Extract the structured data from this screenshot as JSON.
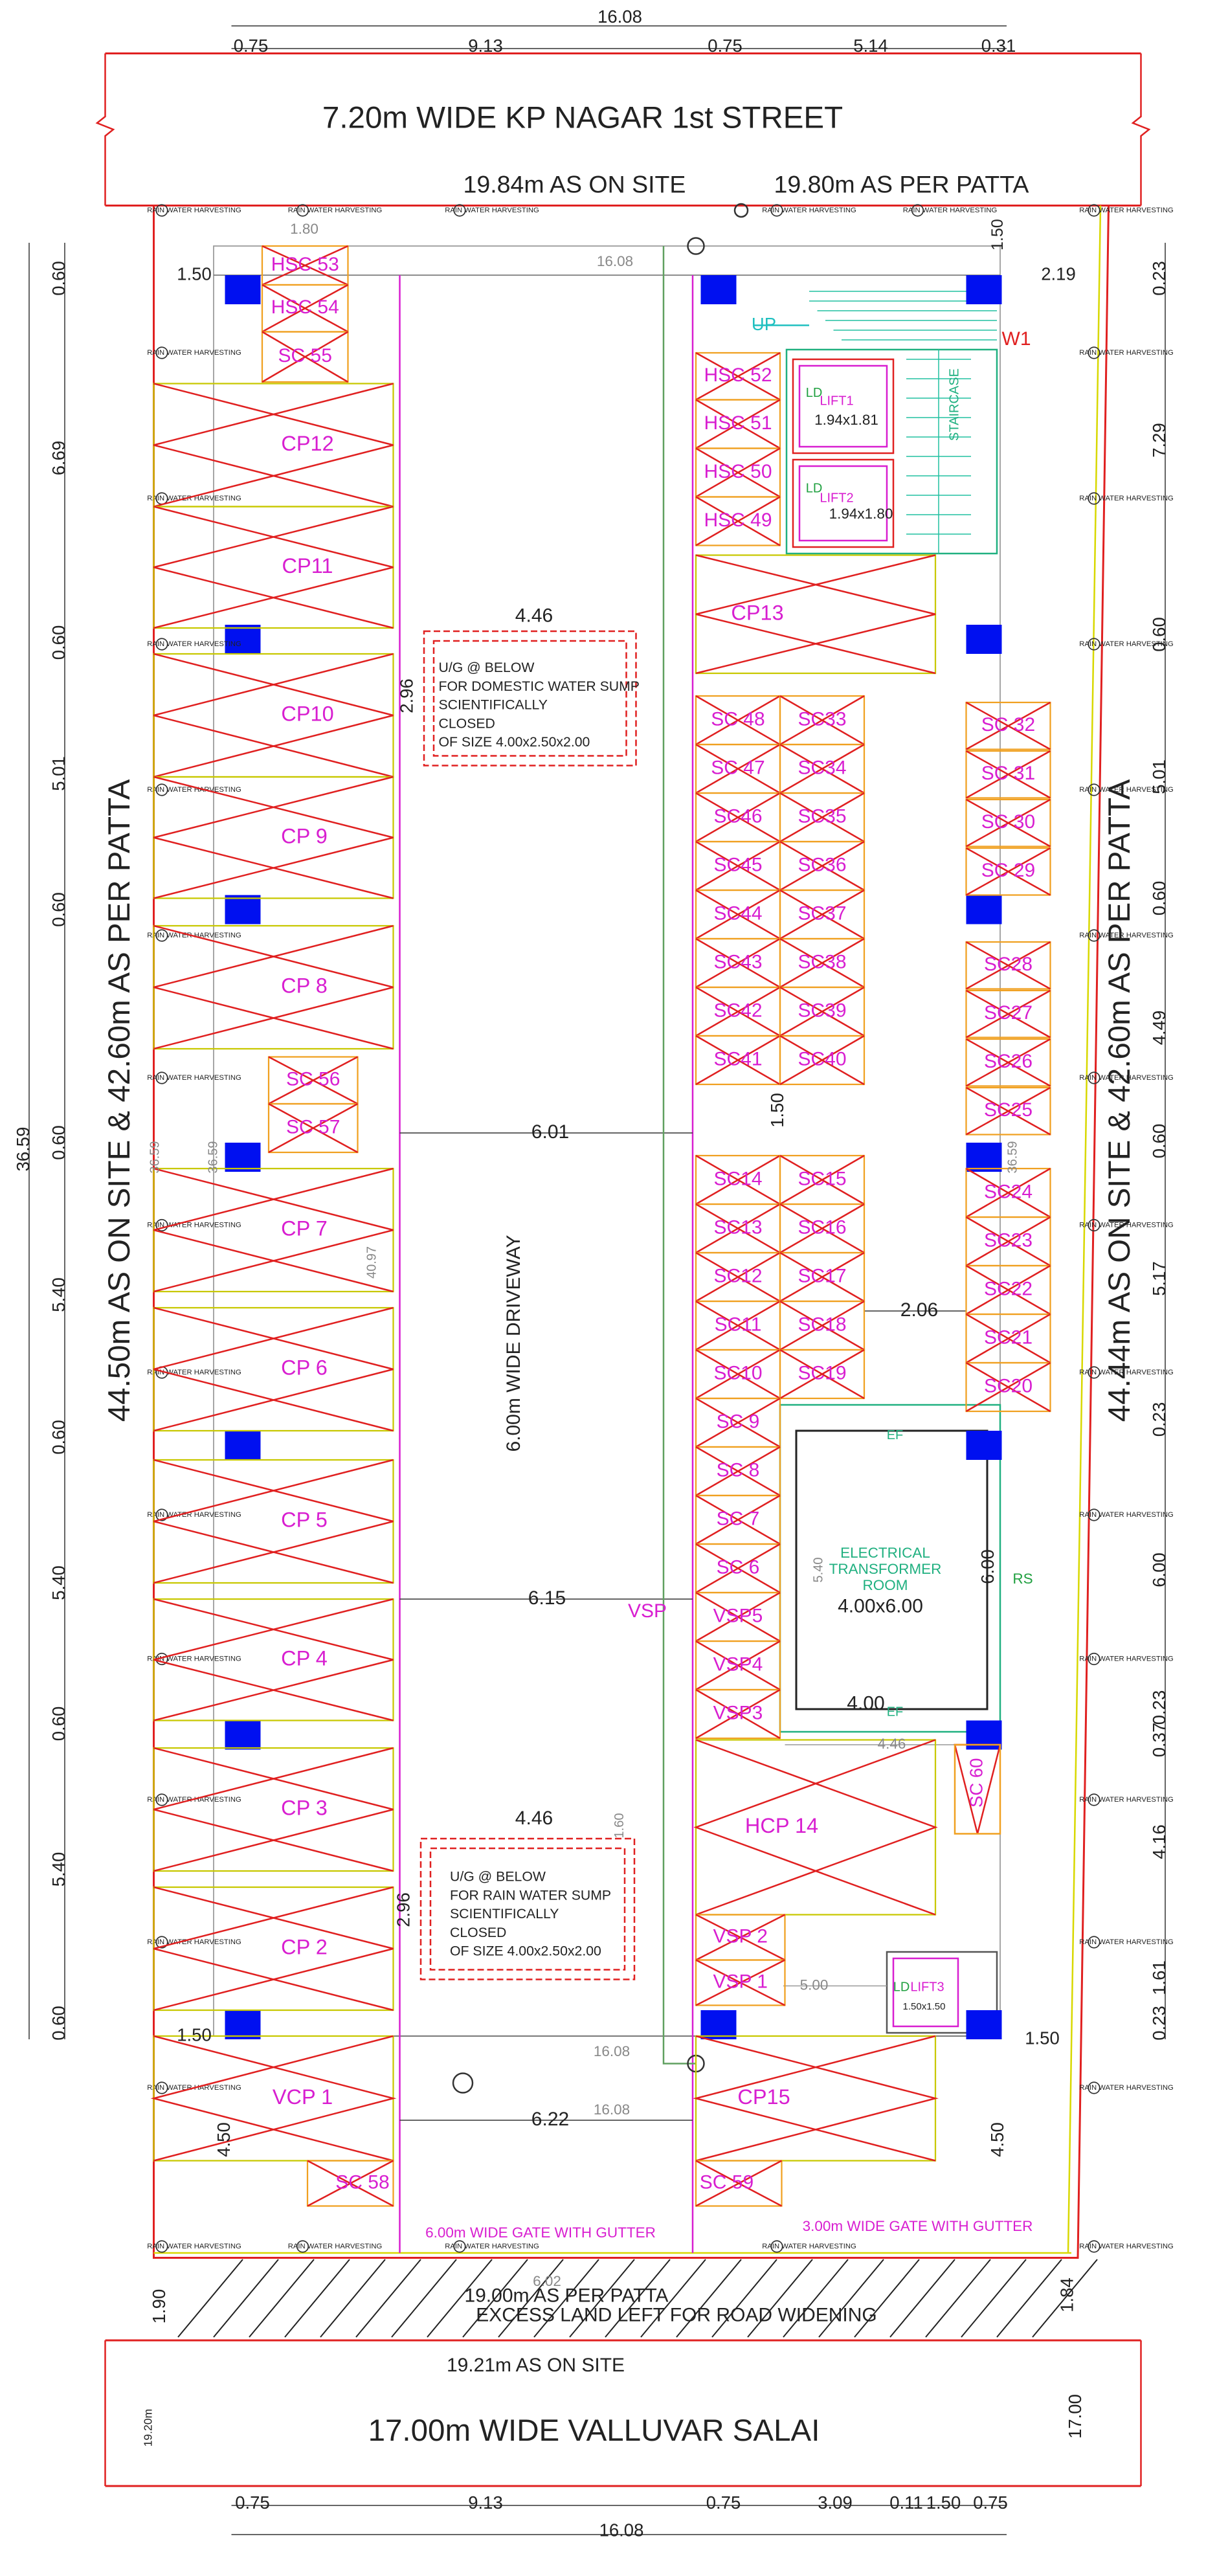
{
  "road_top": "7.20m WIDE KP NAGAR 1st STREET",
  "road_bottom": "17.00m WIDE VALLUVAR SALAI",
  "site_labels": [
    "19.84m AS ON SITE",
    "19.80m AS PER PATTA",
    "44.50m AS ON SITE & 42.60m AS PER PATTA",
    "44.44m AS ON SITE & 42.60m AS PER PATTA",
    "19.00m AS PER PATTA",
    "EXCESS LAND LEFT FOR ROAD WIDENING",
    "19.21m AS ON SITE"
  ],
  "dims_top": [
    "16.08",
    "0.75",
    "9.13",
    "0.75",
    "5.14",
    "0.31"
  ],
  "dims_bottom": [
    "0.75",
    "9.13",
    "0.75",
    "3.09",
    "0.11",
    "1.50",
    "0.75",
    "16.08"
  ],
  "dims_left": [
    "0.60",
    "6.69",
    "0.60",
    "5.01",
    "0.60",
    "0.60",
    "5.40",
    "0.60",
    "5.40",
    "0.60",
    "5.40",
    "0.60",
    "36.59",
    "19.20m",
    "1.90"
  ],
  "dims_right": [
    "0.23",
    "7.29",
    "0.60",
    "5.01",
    "0.60",
    "4.49",
    "0.60",
    "5.17",
    "0.23",
    "6.00",
    "0.23",
    "0.37",
    "4.16",
    "1.61",
    "0.23",
    "17.00",
    "1.84"
  ],
  "dims_inner": [
    "1.50",
    "16.08",
    "2.19",
    "1.80",
    "1.50",
    "4.46",
    "2.96",
    "6.01",
    "1.50",
    "36.59",
    "36.59",
    "36.59",
    "40.97",
    "2.06",
    "6.15",
    "6.00",
    "5.40",
    "4.00",
    "4.46",
    "4.46",
    "1.60",
    "2.96",
    "5.00",
    "1.50",
    "1.50",
    "16.08",
    "6.22",
    "16.08",
    "4.50",
    "4.50",
    "6.02"
  ],
  "parking": [
    "HSC 53",
    "HSC 54",
    "SC 55",
    "CP12",
    "CP11",
    "CP10",
    "CP 9",
    "CP 8",
    "SC 56",
    "SC 57",
    "CP 7",
    "CP 6",
    "CP 5",
    "CP 4",
    "CP 3",
    "CP 2",
    "VCP 1",
    "SC 58",
    "HSC 52",
    "HSC 51",
    "HSC 50",
    "HSC 49",
    "CP13",
    "SC 48",
    "SC33",
    "SC 47",
    "SC34",
    "SC46",
    "SC35",
    "SC45",
    "SC36",
    "SC44",
    "SC37",
    "SC43",
    "SC38",
    "SC42",
    "SC39",
    "SC41",
    "SC40",
    "SC 32",
    "SC 31",
    "SC 30",
    "SC 29",
    "SC28",
    "SC27",
    "SC26",
    "SC25",
    "SC14",
    "SC15",
    "SC13",
    "SC16",
    "SC12",
    "SC17",
    "SC11",
    "SC18",
    "SC10",
    "SC19",
    "SC24",
    "SC23",
    "SC22",
    "SC21",
    "SC20",
    "SC 9",
    "SC  8",
    "SC  7",
    "SC  6",
    "VSP5",
    "VSP4",
    "VSP3",
    "HCP 14",
    "SC 60",
    "VSP 2",
    "VSP 1",
    "CP15",
    "SC 59"
  ],
  "labels": [
    "6.00m WIDE DRIVEWAY",
    "VSP",
    "UP",
    "W1",
    "LIFT1",
    "1.94x1.81",
    "LIFT2",
    "1.94x1.80",
    "LD",
    "LD",
    "STAIRCASE",
    "ELECTRICAL",
    "TRANSFORMER",
    "ROOM",
    "4.00x6.00",
    "EF",
    "EF",
    "RS",
    "LIFT3",
    "LD",
    "1.50x1.50",
    "6.00m WIDE GATE WITH GUTTER",
    "3.00m WIDE GATE WITH GUTTER"
  ],
  "sumps": [
    {
      "lines": [
        "U/G @ BELOW",
        "FOR DOMESTIC  WATER SUMP",
        "SCIENTIFICALLY",
        "CLOSED",
        "OF SIZE 4.00x2.50x2.00"
      ]
    },
    {
      "lines": [
        "U/G @ BELOW",
        "FOR RAIN WATER SUMP",
        "SCIENTIFICALLY",
        "CLOSED",
        "OF SIZE 4.00x2.50x2.00"
      ]
    }
  ],
  "rwh": "RAIN WATER HARVESTING"
}
